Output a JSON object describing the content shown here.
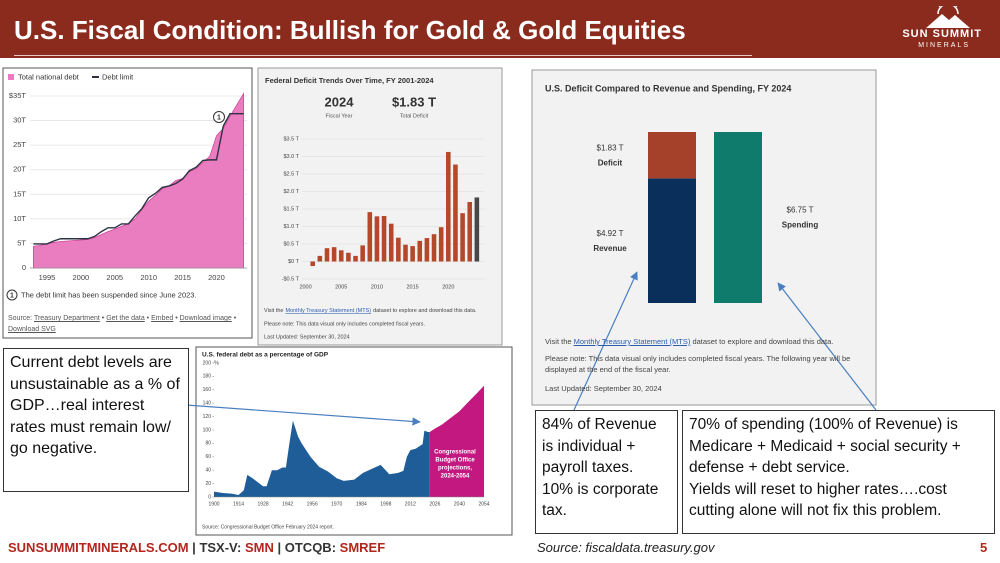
{
  "header": {
    "title": "U.S. Fiscal Condition: Bullish for Gold & Gold Equities",
    "logo": {
      "name": "SUN SUMMIT",
      "tagline": "MINERALS"
    }
  },
  "chart_data": [
    {
      "type": "area_line",
      "x": [
        1993,
        1994,
        1995,
        1996,
        1997,
        1998,
        1999,
        2000,
        2001,
        2002,
        2003,
        2004,
        2005,
        2006,
        2007,
        2008,
        2009,
        2010,
        2011,
        2012,
        2013,
        2014,
        2015,
        2016,
        2017,
        2018,
        2019,
        2020,
        2021,
        2022,
        2023,
        2024
      ],
      "series": [
        {
          "name": "Total national debt",
          "color": "#ea7cc0",
          "values": [
            4.4,
            4.6,
            4.9,
            5.2,
            5.4,
            5.5,
            5.6,
            5.7,
            5.8,
            6.2,
            6.8,
            7.4,
            7.9,
            8.5,
            9.0,
            10.0,
            11.9,
            13.6,
            14.8,
            16.1,
            16.7,
            17.8,
            18.2,
            19.6,
            20.2,
            21.5,
            22.7,
            26.9,
            28.4,
            30.9,
            33.2,
            35.5
          ]
        },
        {
          "name": "Debt limit",
          "color": "#2d3142",
          "values": [
            4.9,
            4.9,
            4.9,
            5.5,
            5.95,
            5.95,
            5.95,
            5.95,
            5.95,
            6.4,
            7.38,
            8.18,
            8.18,
            8.97,
            8.97,
            10.6,
            12.1,
            14.29,
            15.19,
            16.39,
            16.7,
            17.2,
            18.1,
            19.8,
            20.5,
            21.9,
            22.0,
            22.0,
            28.9,
            31.4,
            31.4,
            31.4
          ]
        }
      ],
      "xlim": [
        1992.5,
        2024.5
      ],
      "xticks": [
        1995,
        2000,
        2005,
        2010,
        2015,
        2020
      ],
      "ylim": [
        0,
        35
      ],
      "yticks": [
        {
          "value": 35,
          "label": "$35T"
        },
        {
          "value": 30,
          "label": "30T"
        },
        {
          "value": 25,
          "label": "25T"
        },
        {
          "value": 20,
          "label": "20T"
        },
        {
          "value": 15,
          "label": "15T"
        },
        {
          "value": 10,
          "label": "10T"
        },
        {
          "value": 5,
          "label": "5T"
        },
        0
      ],
      "grid": true,
      "annotation": {
        "marker": "1",
        "text": "The debt limit has been suspended since June 2023."
      },
      "source": {
        "label": "Source:",
        "separator": "•",
        "links": [
          "Treasury Department",
          "Get the data",
          "Embed",
          "Download image",
          "Download SVG"
        ]
      }
    },
    {
      "type": "bar",
      "title": "Federal Deficit Trends Over Time, FY 2001-2024",
      "headline": {
        "year": 2024,
        "year_label": "Fiscal Year",
        "total": "$1.83 T",
        "total_label": "Total Deficit"
      },
      "x": [
        2001,
        2002,
        2003,
        2004,
        2005,
        2006,
        2007,
        2008,
        2009,
        2010,
        2011,
        2012,
        2013,
        2014,
        2015,
        2016,
        2017,
        2018,
        2019,
        2020,
        2021,
        2022,
        2023,
        2024
      ],
      "values": [
        -0.13,
        0.16,
        0.38,
        0.41,
        0.32,
        0.25,
        0.16,
        0.46,
        1.41,
        1.29,
        1.3,
        1.08,
        0.68,
        0.48,
        0.44,
        0.59,
        0.67,
        0.78,
        0.98,
        3.13,
        2.77,
        1.38,
        1.7,
        1.83
      ],
      "color": "#b5472a",
      "highlight_color": "#474747",
      "xlim": [
        1999.5,
        2025
      ],
      "xticks": [
        2000,
        2005,
        2010,
        2015,
        2020
      ],
      "ylim": [
        -0.5,
        3.5
      ],
      "yticks": [
        {
          "value": 3.5,
          "label": "$3.5 T"
        },
        {
          "value": 3.0,
          "label": "$3.0 T"
        },
        {
          "value": 2.5,
          "label": "$2.5 T"
        },
        {
          "value": 2.0,
          "label": "$2.0 T"
        },
        {
          "value": 1.5,
          "label": "$1.5 T"
        },
        {
          "value": 1.0,
          "label": "$1.0 T"
        },
        {
          "value": 0.5,
          "label": "$0.5 T"
        },
        {
          "value": 0,
          "label": "$0 T"
        },
        {
          "value": -0.5,
          "label": "-$0.5 T"
        }
      ],
      "grid": true,
      "link_note": {
        "before": "Visit the",
        "link": "Monthly Treasury Statement (MTS)",
        "after": "dataset to explore and download this data."
      },
      "notes": [
        "Please note: This data visual only includes completed fiscal years.",
        "Last Updated: September 30, 2024"
      ]
    },
    {
      "type": "area",
      "title": "U.S. federal debt as a percentage of GDP",
      "ylabel": "%",
      "series": [
        {
          "color": "#1f5d99",
          "x": [
            1900,
            1905,
            1910,
            1914,
            1917,
            1919,
            1922,
            1928,
            1930,
            1933,
            1936,
            1939,
            1941,
            1943,
            1945,
            1946,
            1948,
            1950,
            1955,
            1960,
            1965,
            1970,
            1974,
            1980,
            1985,
            1990,
            1995,
            2000,
            2005,
            2008,
            2010,
            2012,
            2015,
            2019,
            2020,
            2022,
            2023
          ],
          "values": [
            8,
            6,
            5,
            3,
            10,
            33,
            28,
            16,
            16,
            40,
            40,
            44,
            44,
            80,
            114,
            106,
            90,
            80,
            60,
            45,
            38,
            28,
            24,
            26,
            36,
            42,
            48,
            34,
            36,
            39,
            60,
            70,
            72,
            79,
            99,
            97,
            97
          ]
        },
        {
          "color": "#c2187f",
          "x": [
            2023,
            2026,
            2030,
            2034,
            2040,
            2044,
            2050,
            2054
          ],
          "values": [
            97,
            102,
            108,
            116,
            128,
            139,
            155,
            166
          ]
        }
      ],
      "xlim": [
        1900,
        2054
      ],
      "xticks": [
        1900,
        1914,
        1928,
        1942,
        1956,
        1970,
        1984,
        1998,
        2012,
        2026,
        2040,
        2054
      ],
      "ylim": [
        0,
        200
      ],
      "yticks": [
        0,
        20,
        40,
        60,
        80,
        100,
        120,
        140,
        160,
        180,
        200
      ],
      "annotation": [
        "Congressional",
        "Budget Office",
        "projections,",
        "2024-2054"
      ],
      "source": "Source: Congressional Budget Office February 2024 report."
    },
    {
      "type": "stacked_bar",
      "title": "U.S. Deficit Compared to Revenue and Spending, FY 2024",
      "bars": [
        {
          "segments": [
            {
              "name": "Revenue",
              "value": 4.92,
              "value_label": "$4.92 T",
              "color": "#0b2f5b"
            },
            {
              "name": "Deficit",
              "value": 1.83,
              "value_label": "$1.83 T",
              "color": "#a5402b"
            }
          ]
        },
        {
          "segments": [
            {
              "name": "Spending",
              "value": 6.75,
              "value_label": "$6.75 T",
              "color": "#0f7b6c"
            }
          ]
        }
      ],
      "link_note": {
        "before": "Visit the",
        "link": "Monthly Treasury Statement (MTS)",
        "after": "dataset to explore and download this data."
      },
      "notes": [
        "Please note: This data visual only includes completed fiscal years. The following year will be displayed at the end of the fiscal year.",
        "Last Updated: September 30, 2024"
      ]
    }
  ],
  "callouts": [
    {
      "paragraphs": [
        "Current debt levels are unsustainable as a % of GDP…real interest rates must remain low/ go negative."
      ]
    },
    {
      "paragraphs": [
        "84% of Revenue is individual + payroll taxes.",
        "10% is corporate tax."
      ]
    },
    {
      "paragraphs": [
        "70% of spending (100% of Revenue) is Medicare + Medicaid + social security + defense + debt service.",
        "Yields will reset to higher rates….cost cutting alone will not fix this problem."
      ]
    }
  ],
  "footer": {
    "website": "SUNSUMMITMINERALS.COM",
    "separator": "|",
    "listings": [
      {
        "exchange": "TSX-V:",
        "symbol": "SMN"
      },
      {
        "exchange": "OTCQB:",
        "symbol": "SMREF"
      }
    ],
    "source": "Source: fiscaldata.treasury.gov",
    "page": 5
  }
}
